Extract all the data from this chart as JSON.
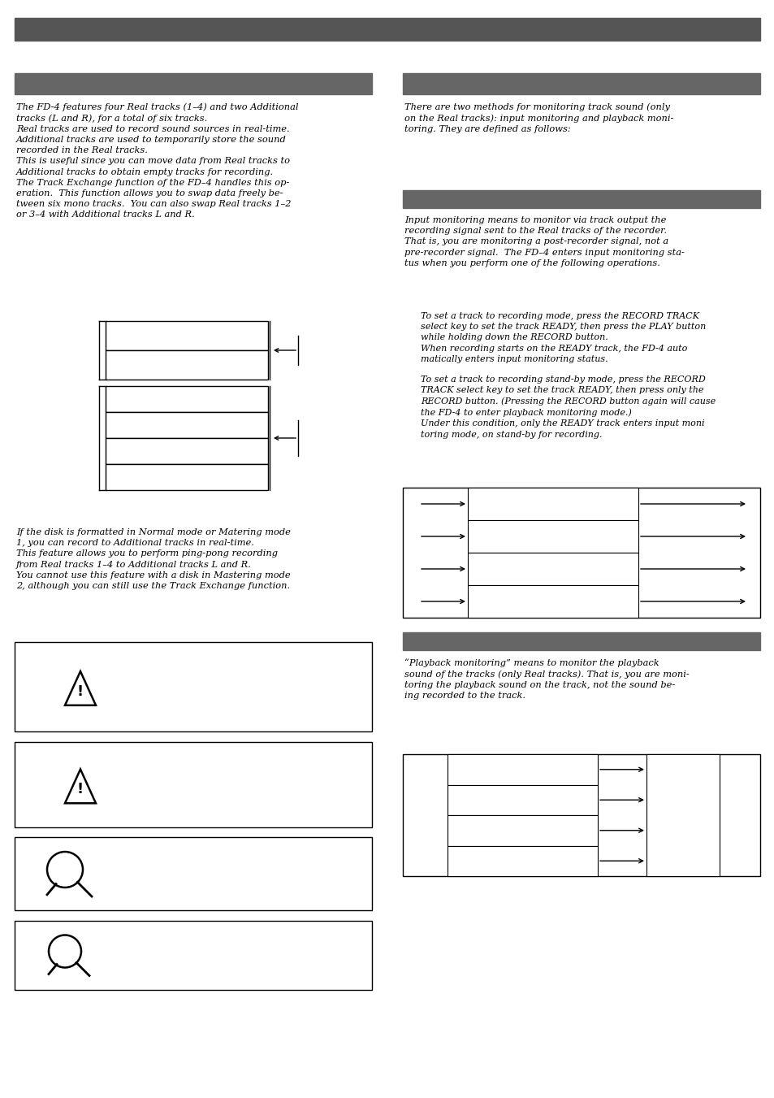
{
  "bg_color": "#ffffff",
  "header_bar_color": "#555555",
  "section_bar_color": "#666666",
  "left_text1": "The FD-4 features four Real tracks (1–4) and two Additional\ntracks (L and R), for a total of six tracks.\nReal tracks are used to record sound sources in real-time.\nAdditional tracks are used to temporarily store the sound\nrecorded in the Real tracks.\nThis is useful since you can move data from Real tracks to\nAdditional tracks to obtain empty tracks for recording.\nThe Track Exchange function of the FD–4 handles this op-\neration.  This function allows you to swap data freely be-\ntween six mono tracks.  You can also swap Real tracks 1–2\nor 3–4 with Additional tracks L and R.",
  "right_text1": "There are two methods for monitoring track sound (only\non the Real tracks): input monitoring and playback moni-\ntoring. They are defined as follows:",
  "right_subtext1": "Input monitoring means to monitor via track output the\nrecording signal sent to the Real tracks of the recorder.\nThat is, you are monitoring a post-recorder signal, not a\npre-recorder signal.  The FD–4 enters input monitoring sta-\ntus when you perform one of the following operations.",
  "right_subtext1a": "To set a track to recording mode, press the RECORD TRACK\nselect key to set the track READY, then press the PLAY button\nwhile holding down the RECORD button.\nWhen recording starts on the READY track, the FD-4 auto\nmatically enters input monitoring status.",
  "right_subtext1b": "To set a track to recording stand-by mode, press the RECORD\nTRACK select key to set the track READY, then press only the\nRECORD button. (Pressing the RECORD button again will cause\nthe FD-4 to enter playback monitoring mode.)\nUnder this condition, only the READY track enters input moni\ntoring mode, on stand-by for recording.",
  "left_text2": "If the disk is formatted in Normal mode or Matering mode\n1, you can record to Additional tracks in real-time.\nThis feature allows you to perform ping-pong recording\nfrom Real tracks 1–4 to Additional tracks L and R.\nYou cannot use this feature with a disk in Mastering mode\n2, although you can still use the Track Exchange function.",
  "right_subtext2": "“Playback monitoring” means to monitor the playback\nsound of the tracks (only Real tracks). That is, you are moni-\ntoring the playback sound on the track, not the sound be-\ning recorded to the track."
}
